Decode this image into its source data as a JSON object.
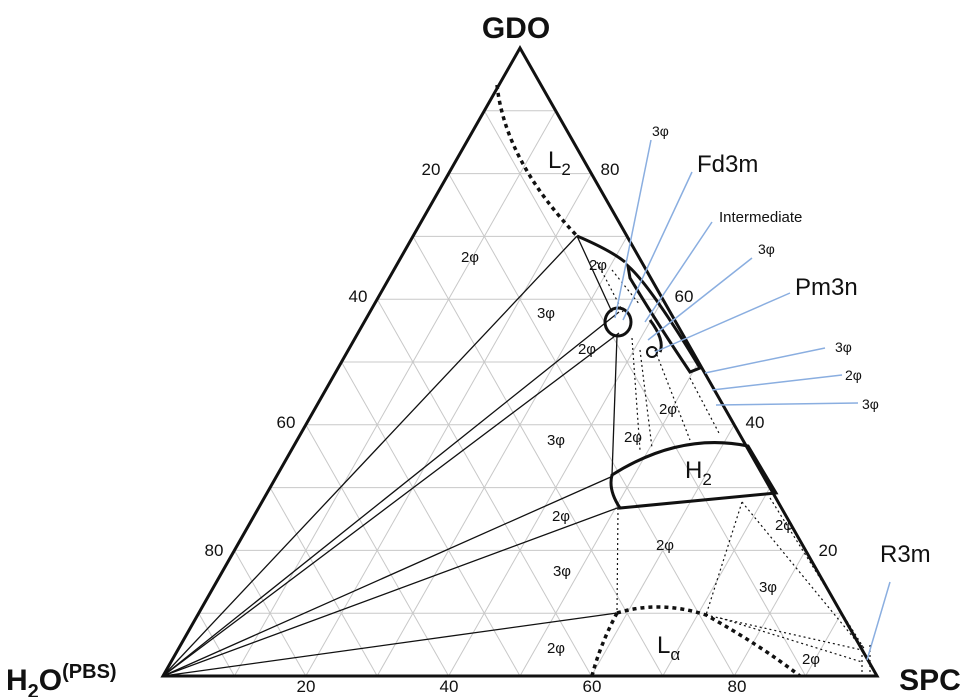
{
  "vertices": {
    "top": "GDO",
    "bottom_left_main": "H",
    "bottom_left_sub": "2",
    "bottom_left_tail": "O",
    "bottom_left_sup": "(PBS)",
    "bottom_right": "SPC"
  },
  "ticks": {
    "bottom": [
      "20",
      "40",
      "60",
      "80"
    ],
    "left": [
      "20",
      "40",
      "60",
      "80"
    ],
    "right": [
      "80",
      "60",
      "40",
      "20"
    ]
  },
  "phases": {
    "l2_main": "L",
    "l2_sub": "2",
    "h2_main": "H",
    "h2_sub": "2",
    "la_main": "L",
    "la_sub": "α"
  },
  "regions": {
    "r1": "2φ",
    "r2": "2φ",
    "r3": "3φ",
    "r4": "2φ",
    "r5": "2φ",
    "r6": "3φ",
    "r7": "2φ",
    "r8": "2φ",
    "r9": "2φ",
    "r10": "3φ",
    "r11": "2φ",
    "r12": "3φ",
    "r13": "2φ",
    "r14": "2φ"
  },
  "callouts": {
    "c1": "3φ",
    "c2": "Fd3m",
    "c3": "Intermediate",
    "c4": "3φ",
    "c5": "Pm3n",
    "c6": "3φ",
    "c7": "2φ",
    "c8": "3φ",
    "c9": "R3m"
  }
}
